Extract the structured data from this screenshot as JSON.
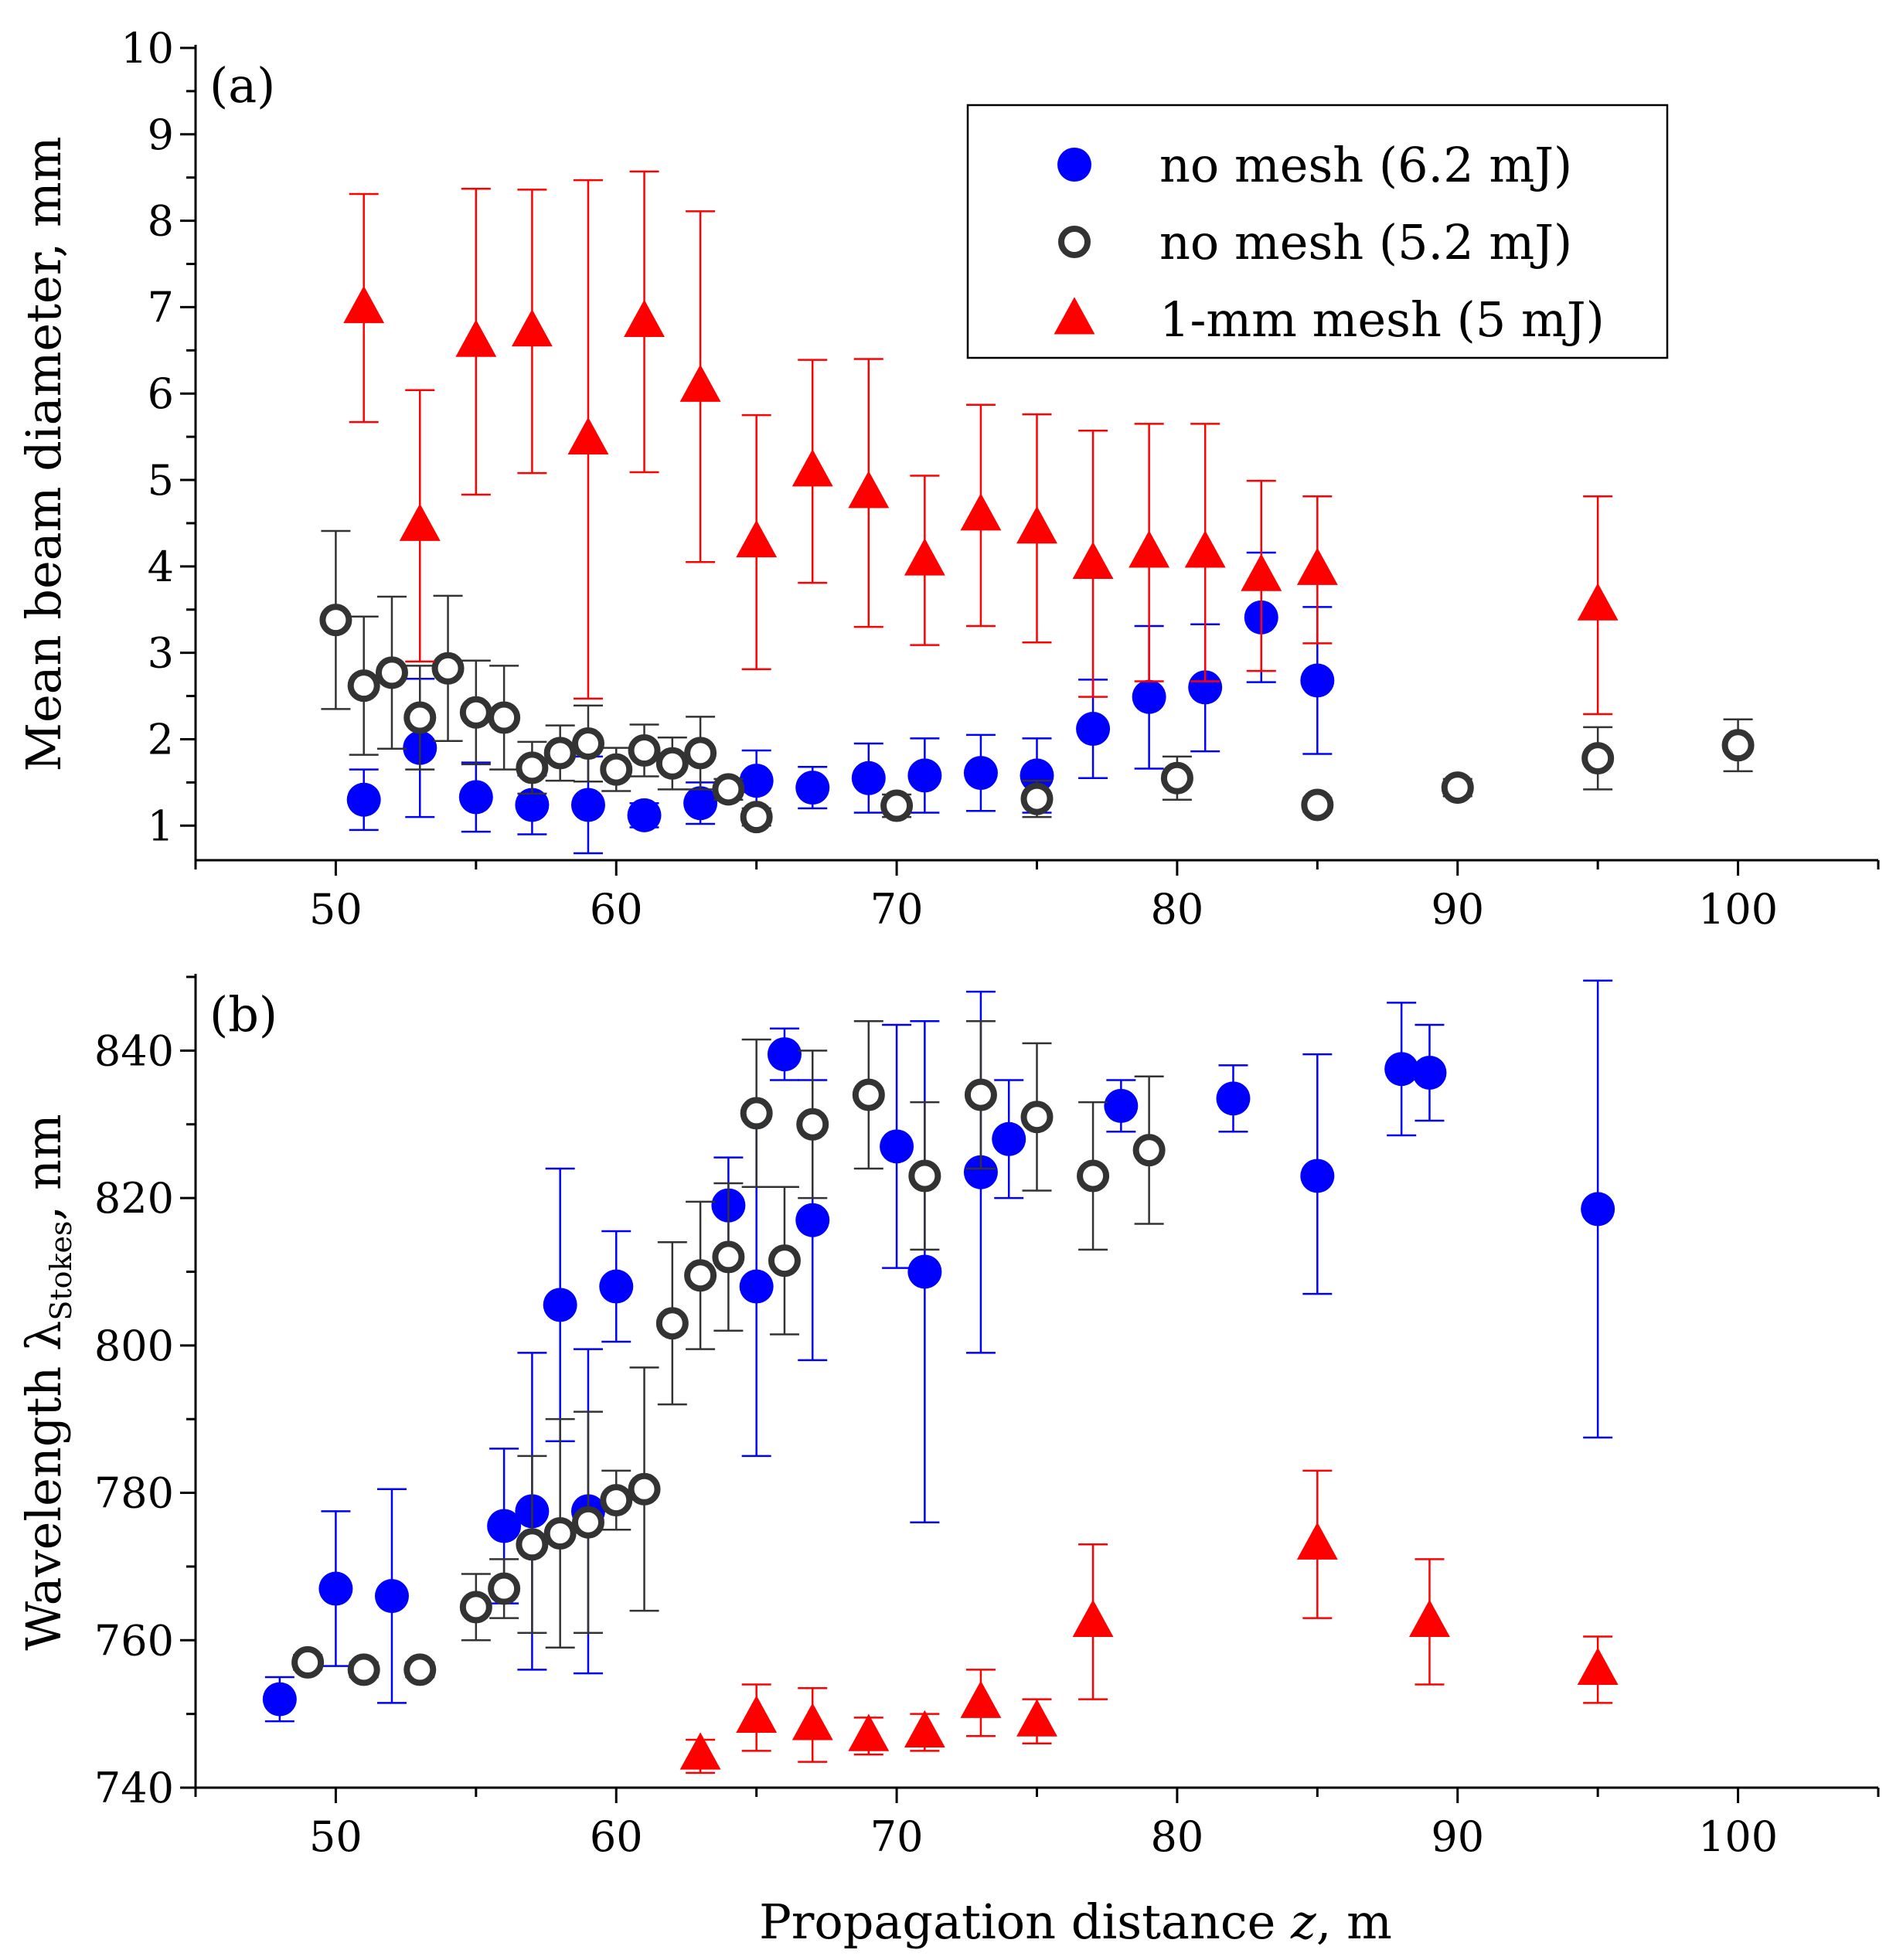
{
  "chart_data": [
    {
      "type": "scatter",
      "panel_label": "(a)",
      "ylabel": "Mean beam diameter, mm",
      "xlabel": "",
      "xlim": [
        45,
        105
      ],
      "ylim": [
        0.6,
        10
      ],
      "xticks": [
        50,
        60,
        70,
        80,
        90,
        100
      ],
      "yticks": [
        1,
        2,
        3,
        4,
        5,
        6,
        7,
        8,
        9,
        10
      ],
      "legend": {
        "position": "top-right"
      },
      "series": [
        {
          "name": "no mesh (6.2 mJ)",
          "marker": "filled-circle",
          "color": "#0000ff",
          "points": [
            {
              "x": 51,
              "y": 1.3,
              "lo": 0.95,
              "hi": 1.65
            },
            {
              "x": 53,
              "y": 1.9,
              "lo": 1.1,
              "hi": 2.7
            },
            {
              "x": 55,
              "y": 1.33,
              "lo": 0.93,
              "hi": 1.73
            },
            {
              "x": 57,
              "y": 1.24,
              "lo": 0.9,
              "hi": 1.58
            },
            {
              "x": 59,
              "y": 1.24,
              "lo": 0.68,
              "hi": 1.8
            },
            {
              "x": 61,
              "y": 1.12,
              "lo": 0.98,
              "hi": 1.26
            },
            {
              "x": 63,
              "y": 1.26,
              "lo": 1.02,
              "hi": 1.5
            },
            {
              "x": 65,
              "y": 1.52,
              "lo": 1.17,
              "hi": 1.87
            },
            {
              "x": 67,
              "y": 1.44,
              "lo": 1.2,
              "hi": 1.68
            },
            {
              "x": 69,
              "y": 1.55,
              "lo": 1.15,
              "hi": 1.95
            },
            {
              "x": 71,
              "y": 1.58,
              "lo": 1.15,
              "hi": 2.01
            },
            {
              "x": 73,
              "y": 1.61,
              "lo": 1.17,
              "hi": 2.05
            },
            {
              "x": 75,
              "y": 1.58,
              "lo": 1.15,
              "hi": 2.01
            },
            {
              "x": 77,
              "y": 2.12,
              "lo": 1.55,
              "hi": 2.69
            },
            {
              "x": 79,
              "y": 2.49,
              "lo": 1.66,
              "hi": 3.31
            },
            {
              "x": 81,
              "y": 2.6,
              "lo": 1.86,
              "hi": 3.33
            },
            {
              "x": 83,
              "y": 3.41,
              "lo": 2.66,
              "hi": 4.16
            },
            {
              "x": 85,
              "y": 2.68,
              "lo": 1.83,
              "hi": 3.53
            }
          ]
        },
        {
          "name": "no mesh (5.2 mJ)",
          "marker": "open-circle",
          "color": "#333333",
          "points": [
            {
              "x": 50,
              "y": 3.38,
              "lo": 2.35,
              "hi": 4.41
            },
            {
              "x": 51,
              "y": 2.62,
              "lo": 1.82,
              "hi": 3.42
            },
            {
              "x": 52,
              "y": 2.77,
              "lo": 1.89,
              "hi": 3.65
            },
            {
              "x": 53,
              "y": 2.25,
              "lo": 1.65,
              "hi": 2.85
            },
            {
              "x": 54,
              "y": 2.82,
              "lo": 1.98,
              "hi": 3.66
            },
            {
              "x": 55,
              "y": 2.31,
              "lo": 1.71,
              "hi": 2.91
            },
            {
              "x": 56,
              "y": 2.25,
              "lo": 1.65,
              "hi": 2.85
            },
            {
              "x": 57,
              "y": 1.67,
              "lo": 1.37,
              "hi": 1.97
            },
            {
              "x": 58,
              "y": 1.84,
              "lo": 1.52,
              "hi": 2.16
            },
            {
              "x": 59,
              "y": 1.95,
              "lo": 1.51,
              "hi": 2.39
            },
            {
              "x": 60,
              "y": 1.65,
              "lo": 1.4,
              "hi": 1.9
            },
            {
              "x": 61,
              "y": 1.87,
              "lo": 1.57,
              "hi": 2.17
            },
            {
              "x": 62,
              "y": 1.72,
              "lo": 1.42,
              "hi": 2.02
            },
            {
              "x": 63,
              "y": 1.84,
              "lo": 1.42,
              "hi": 2.26
            },
            {
              "x": 64,
              "y": 1.42,
              "lo": 1.3,
              "hi": 1.54
            },
            {
              "x": 65,
              "y": 1.1,
              "lo": 1.0,
              "hi": 1.2
            },
            {
              "x": 70,
              "y": 1.23,
              "lo": 1.1,
              "hi": 1.36
            },
            {
              "x": 75,
              "y": 1.31,
              "lo": 1.1,
              "hi": 1.52
            },
            {
              "x": 80,
              "y": 1.55,
              "lo": 1.3,
              "hi": 1.8
            },
            {
              "x": 85,
              "y": 1.24,
              "lo": 1.16,
              "hi": 1.32
            },
            {
              "x": 90,
              "y": 1.44,
              "lo": 1.34,
              "hi": 1.54
            },
            {
              "x": 95,
              "y": 1.78,
              "lo": 1.42,
              "hi": 2.14
            },
            {
              "x": 100,
              "y": 1.93,
              "lo": 1.63,
              "hi": 2.23
            }
          ]
        },
        {
          "name": "1-mm mesh (5 mJ)",
          "marker": "filled-triangle",
          "color": "#ff0000",
          "points": [
            {
              "x": 51,
              "y": 6.99,
              "lo": 5.67,
              "hi": 8.31
            },
            {
              "x": 53,
              "y": 4.47,
              "lo": 2.9,
              "hi": 6.04
            },
            {
              "x": 55,
              "y": 6.6,
              "lo": 4.83,
              "hi": 8.37
            },
            {
              "x": 57,
              "y": 6.72,
              "lo": 5.08,
              "hi": 8.36
            },
            {
              "x": 59,
              "y": 5.47,
              "lo": 2.47,
              "hi": 8.47
            },
            {
              "x": 61,
              "y": 6.83,
              "lo": 5.09,
              "hi": 8.57
            },
            {
              "x": 63,
              "y": 6.08,
              "lo": 4.05,
              "hi": 8.11
            },
            {
              "x": 65,
              "y": 4.28,
              "lo": 2.81,
              "hi": 5.75
            },
            {
              "x": 67,
              "y": 5.1,
              "lo": 3.81,
              "hi": 6.39
            },
            {
              "x": 69,
              "y": 4.85,
              "lo": 3.3,
              "hi": 6.4
            },
            {
              "x": 71,
              "y": 4.07,
              "lo": 3.09,
              "hi": 5.05
            },
            {
              "x": 73,
              "y": 4.59,
              "lo": 3.31,
              "hi": 5.87
            },
            {
              "x": 75,
              "y": 4.44,
              "lo": 3.12,
              "hi": 5.76
            },
            {
              "x": 77,
              "y": 4.03,
              "lo": 2.49,
              "hi": 5.57
            },
            {
              "x": 79,
              "y": 4.16,
              "lo": 2.67,
              "hi": 5.65
            },
            {
              "x": 81,
              "y": 4.16,
              "lo": 2.67,
              "hi": 5.65
            },
            {
              "x": 83,
              "y": 3.89,
              "lo": 2.79,
              "hi": 4.99
            },
            {
              "x": 85,
              "y": 3.96,
              "lo": 3.11,
              "hi": 4.81
            },
            {
              "x": 95,
              "y": 3.55,
              "lo": 2.29,
              "hi": 4.81
            }
          ]
        }
      ]
    },
    {
      "type": "scatter",
      "panel_label": "(b)",
      "ylabel": "Wavelength λ",
      "ylabel_sub": "Stokes",
      "ylabel_unit": ", nm",
      "xlabel": "Propagation distance z, m",
      "xlim": [
        45,
        105
      ],
      "ylim": [
        740,
        850
      ],
      "xticks": [
        50,
        60,
        70,
        80,
        90,
        100
      ],
      "yticks": [
        740,
        760,
        780,
        800,
        820,
        840
      ],
      "series": [
        {
          "name": "no mesh (6.2 mJ)",
          "marker": "filled-circle",
          "color": "#0000ff",
          "points": [
            {
              "x": 48,
              "y": 752,
              "lo": 749,
              "hi": 755
            },
            {
              "x": 50,
              "y": 767,
              "lo": 756.5,
              "hi": 777.5
            },
            {
              "x": 52,
              "y": 766,
              "lo": 751.5,
              "hi": 780.5
            },
            {
              "x": 56,
              "y": 775.5,
              "lo": 765,
              "hi": 786
            },
            {
              "x": 57,
              "y": 777.5,
              "lo": 756,
              "hi": 799
            },
            {
              "x": 58,
              "y": 805.5,
              "lo": 787,
              "hi": 824
            },
            {
              "x": 59,
              "y": 777.5,
              "lo": 755.5,
              "hi": 799.5
            },
            {
              "x": 60,
              "y": 808,
              "lo": 800.5,
              "hi": 815.5
            },
            {
              "x": 64,
              "y": 819,
              "lo": 812.5,
              "hi": 825.5
            },
            {
              "x": 65,
              "y": 808,
              "lo": 785,
              "hi": 831
            },
            {
              "x": 66,
              "y": 839.5,
              "lo": 836,
              "hi": 843
            },
            {
              "x": 67,
              "y": 817,
              "lo": 798,
              "hi": 836
            },
            {
              "x": 70,
              "y": 827,
              "lo": 810.5,
              "hi": 843.5
            },
            {
              "x": 71,
              "y": 810,
              "lo": 776,
              "hi": 844
            },
            {
              "x": 73,
              "y": 823.5,
              "lo": 799,
              "hi": 848
            },
            {
              "x": 74,
              "y": 828,
              "lo": 820,
              "hi": 836
            },
            {
              "x": 78,
              "y": 832.5,
              "lo": 829,
              "hi": 836
            },
            {
              "x": 82,
              "y": 833.5,
              "lo": 829,
              "hi": 838
            },
            {
              "x": 85,
              "y": 823,
              "lo": 807,
              "hi": 839.5
            },
            {
              "x": 88,
              "y": 837.5,
              "lo": 828.5,
              "hi": 846.5
            },
            {
              "x": 89,
              "y": 837,
              "lo": 830.5,
              "hi": 843.5
            },
            {
              "x": 95,
              "y": 818.5,
              "lo": 787.5,
              "hi": 849.5
            }
          ]
        },
        {
          "name": "no mesh (5.2 mJ)",
          "marker": "open-circle",
          "color": "#333333",
          "points": [
            {
              "x": 49,
              "y": 757,
              "lo": 756,
              "hi": 758
            },
            {
              "x": 51,
              "y": 756,
              "lo": 755,
              "hi": 757
            },
            {
              "x": 53,
              "y": 756,
              "lo": 755,
              "hi": 757
            },
            {
              "x": 55,
              "y": 764.5,
              "lo": 760,
              "hi": 769
            },
            {
              "x": 56,
              "y": 767,
              "lo": 763,
              "hi": 771
            },
            {
              "x": 57,
              "y": 773,
              "lo": 761,
              "hi": 785
            },
            {
              "x": 58,
              "y": 774.5,
              "lo": 759,
              "hi": 790
            },
            {
              "x": 59,
              "y": 776,
              "lo": 761,
              "hi": 791
            },
            {
              "x": 60,
              "y": 779,
              "lo": 775,
              "hi": 783
            },
            {
              "x": 61,
              "y": 780.5,
              "lo": 764,
              "hi": 797
            },
            {
              "x": 62,
              "y": 803,
              "lo": 792,
              "hi": 814
            },
            {
              "x": 63,
              "y": 809.5,
              "lo": 799.5,
              "hi": 819.5
            },
            {
              "x": 64,
              "y": 812,
              "lo": 802,
              "hi": 822
            },
            {
              "x": 65,
              "y": 831.5,
              "lo": 821.5,
              "hi": 841.5
            },
            {
              "x": 66,
              "y": 811.5,
              "lo": 801.5,
              "hi": 821.5
            },
            {
              "x": 67,
              "y": 830,
              "lo": 820,
              "hi": 840
            },
            {
              "x": 69,
              "y": 834,
              "lo": 824,
              "hi": 844
            },
            {
              "x": 71,
              "y": 823,
              "lo": 813,
              "hi": 833
            },
            {
              "x": 73,
              "y": 834,
              "lo": 824,
              "hi": 844
            },
            {
              "x": 75,
              "y": 831,
              "lo": 821,
              "hi": 841
            },
            {
              "x": 77,
              "y": 823,
              "lo": 813,
              "hi": 833
            },
            {
              "x": 79,
              "y": 826.5,
              "lo": 816.5,
              "hi": 836.5
            }
          ]
        },
        {
          "name": "1-mm mesh (5 mJ)",
          "marker": "filled-triangle",
          "color": "#ff0000",
          "points": [
            {
              "x": 63,
              "y": 744.5,
              "lo": 742,
              "hi": 746.5
            },
            {
              "x": 65,
              "y": 749.5,
              "lo": 745,
              "hi": 754
            },
            {
              "x": 67,
              "y": 748.5,
              "lo": 743.5,
              "hi": 753.5
            },
            {
              "x": 69,
              "y": 747,
              "lo": 744.5,
              "hi": 749.5
            },
            {
              "x": 71,
              "y": 747.5,
              "lo": 745,
              "hi": 750
            },
            {
              "x": 73,
              "y": 751.5,
              "lo": 747,
              "hi": 756
            },
            {
              "x": 75,
              "y": 749,
              "lo": 746,
              "hi": 752
            },
            {
              "x": 77,
              "y": 762.5,
              "lo": 752,
              "hi": 773
            },
            {
              "x": 85,
              "y": 773,
              "lo": 763,
              "hi": 783
            },
            {
              "x": 89,
              "y": 762.5,
              "lo": 754,
              "hi": 771
            },
            {
              "x": 95,
              "y": 756,
              "lo": 751.5,
              "hi": 760.5
            }
          ]
        }
      ]
    }
  ]
}
